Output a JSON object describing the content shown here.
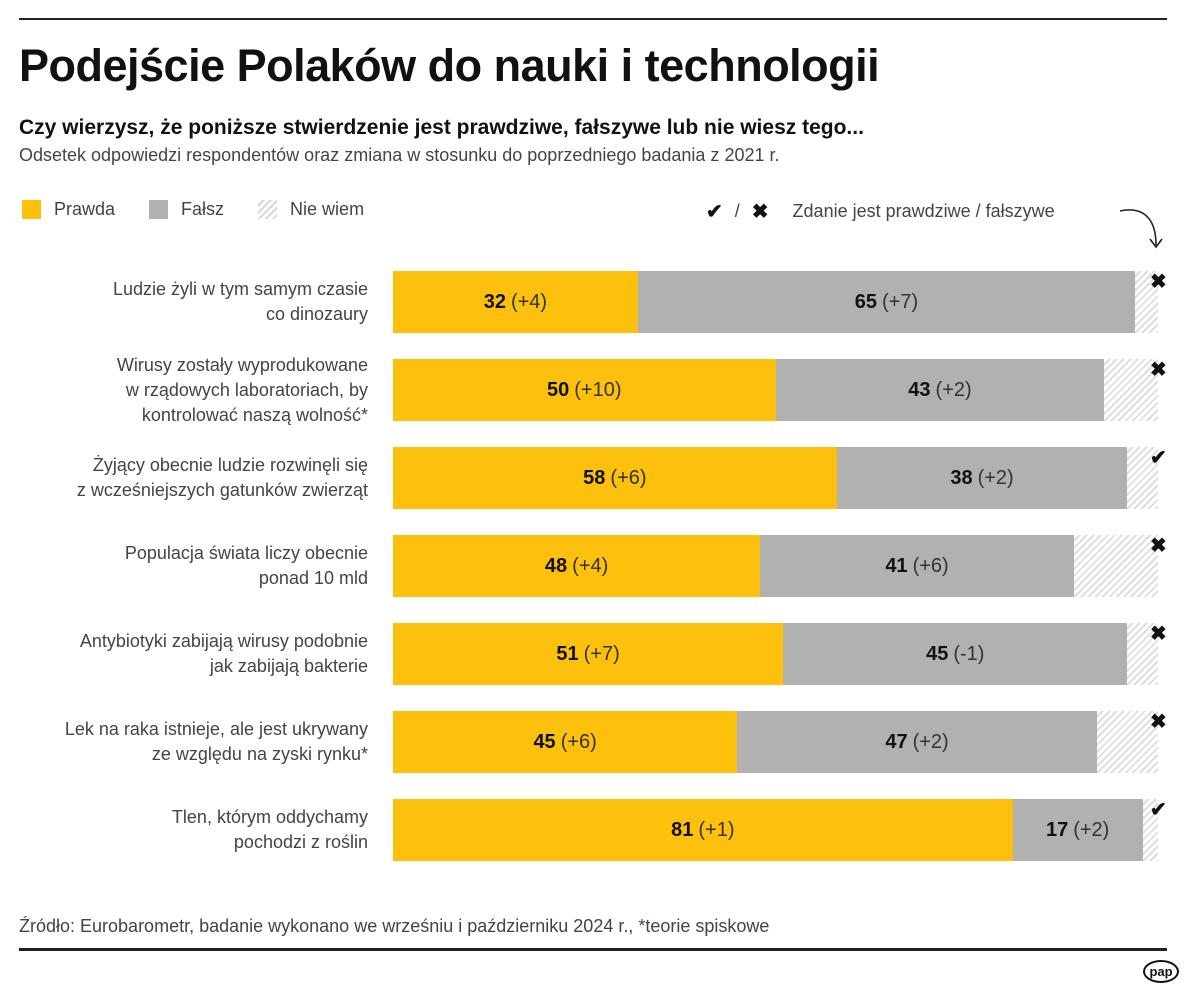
{
  "header": {
    "title": "Podejście Polaków do nauki i technologii",
    "question": "Czy wierzysz, że poniższe stwierdzenie jest prawdziwe, fałszywe lub nie wiesz tego...",
    "subtitle": "Odsetek odpowiedzi respondentów oraz zmiana w stosunku do poprzedniego badania z 2021 r."
  },
  "legend": {
    "items": [
      {
        "label": "Prawda",
        "color": "#fdc00c"
      },
      {
        "label": "Fałsz",
        "color": "#b1b1b1"
      },
      {
        "label": "Nie wiem",
        "color": "hatched"
      }
    ],
    "verdict_true_icon": "✔",
    "verdict_separator": "/",
    "verdict_false_icon": "✖",
    "verdict_description": "Zdanie jest prawdziwe / fałszywe"
  },
  "chart_data": {
    "type": "bar",
    "orientation": "horizontal-stacked",
    "title": "Podejście Polaków do nauki i technologii",
    "xlabel": "",
    "ylabel": "",
    "xlim": [
      0,
      100
    ],
    "unit": "%",
    "series_names": [
      "Prawda",
      "Fałsz",
      "Nie wiem"
    ],
    "colors": {
      "Prawda": "#fdc00c",
      "Fałsz": "#b1b1b1",
      "Nie wiem": "hatched"
    },
    "rows": [
      {
        "label_lines": [
          "Ludzie żyli w tym samym czasie",
          "co dinozaury"
        ],
        "prawda": 32,
        "prawda_change": "(+4)",
        "falsz": 65,
        "falsz_change": "(+7)",
        "niewiem": 3,
        "verdict": "false"
      },
      {
        "label_lines": [
          "Wirusy zostały wyprodukowane",
          "w rządowych laboratoriach, by",
          "kontrolować naszą wolność*"
        ],
        "prawda": 50,
        "prawda_change": "(+10)",
        "falsz": 43,
        "falsz_change": "(+2)",
        "niewiem": 7,
        "verdict": "false"
      },
      {
        "label_lines": [
          "Żyjący obecnie ludzie rozwinęli się",
          "z wcześniejszych gatunków zwierząt"
        ],
        "prawda": 58,
        "prawda_change": "(+6)",
        "falsz": 38,
        "falsz_change": "(+2)",
        "niewiem": 4,
        "verdict": "true"
      },
      {
        "label_lines": [
          "Populacja świata liczy obecnie",
          "ponad 10 mld"
        ],
        "prawda": 48,
        "prawda_change": "(+4)",
        "falsz": 41,
        "falsz_change": "(+6)",
        "niewiem": 11,
        "verdict": "false"
      },
      {
        "label_lines": [
          "Antybiotyki zabijają wirusy podobnie",
          "jak zabijają bakterie"
        ],
        "prawda": 51,
        "prawda_change": "(+7)",
        "falsz": 45,
        "falsz_change": "(-1)",
        "niewiem": 4,
        "verdict": "false"
      },
      {
        "label_lines": [
          "Lek na raka istnieje, ale jest ukrywany",
          "ze względu na zyski rynku*"
        ],
        "prawda": 45,
        "prawda_change": "(+6)",
        "falsz": 47,
        "falsz_change": "(+2)",
        "niewiem": 8,
        "verdict": "false"
      },
      {
        "label_lines": [
          "Tlen, którym oddychamy",
          "pochodzi z roślin"
        ],
        "prawda": 81,
        "prawda_change": "(+1)",
        "falsz": 17,
        "falsz_change": "(+2)",
        "niewiem": 2,
        "verdict": "true"
      }
    ]
  },
  "footer": {
    "source": "Źródło: Eurobarometr, badanie wykonano we wrześniu i październiku 2024 r., *teorie spiskowe",
    "logo": "pap"
  }
}
